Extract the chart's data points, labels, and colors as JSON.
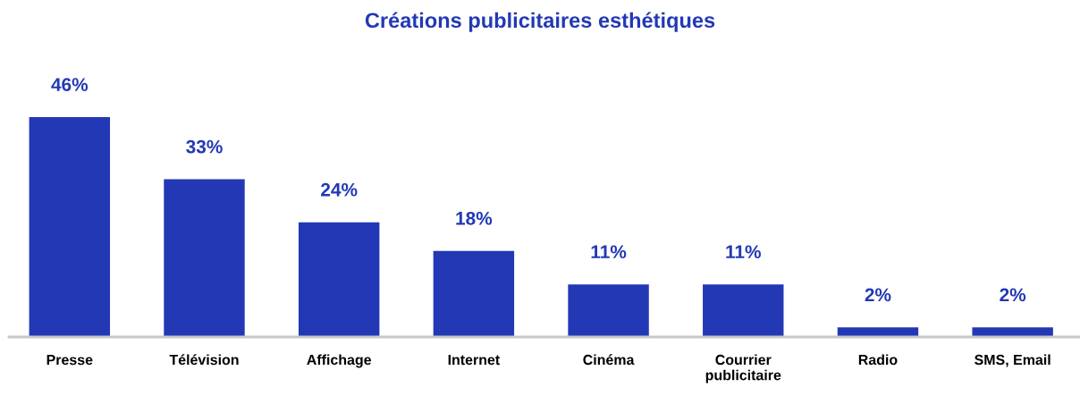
{
  "chart_data": {
    "type": "bar",
    "title": "Créations publicitaires esthétiques",
    "categories": [
      "Presse",
      "Télévision",
      "Affichage",
      "Internet",
      "Cinéma",
      "Courrier\npublicitaire",
      "Radio",
      "SMS, Email"
    ],
    "values": [
      46,
      33,
      24,
      18,
      11,
      11,
      2,
      2
    ],
    "value_labels": [
      "46%",
      "33%",
      "24%",
      "18%",
      "11%",
      "11%",
      "2%",
      "2%"
    ],
    "color": "#2238b5",
    "grid": false,
    "legend": false
  }
}
